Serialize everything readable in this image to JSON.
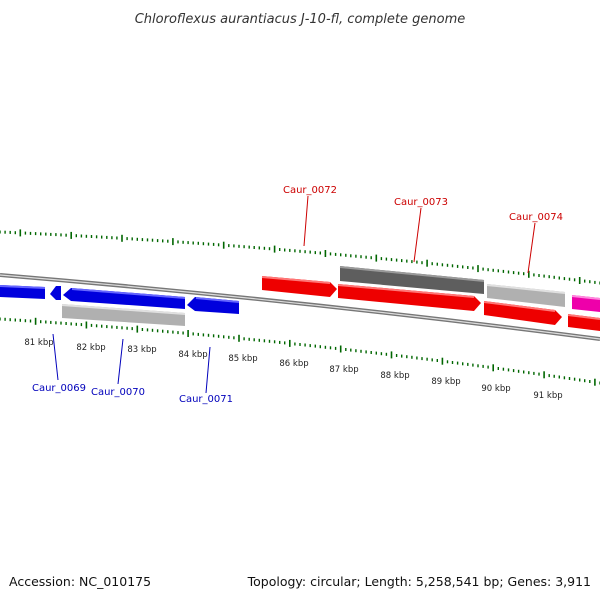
{
  "title": "Chloroflexus aurantiacus J-10-fl, complete genome",
  "footer": {
    "accession": "Accession: NC_010175",
    "summary": "Topology: circular; Length: 5,258,541 bp; Genes: 3,911"
  },
  "colors": {
    "forward": "#ee0000",
    "reverse": "#0000dd",
    "other_forward": "#ee00aa",
    "backbone": "#888888",
    "tick": "#006600",
    "label_forward": "#cc0000",
    "label_reverse": "#0000bb"
  },
  "kbp_labels": [
    "81 kbp",
    "82 kbp",
    "83 kbp",
    "84 kbp",
    "85 kbp",
    "86 kbp",
    "87 kbp",
    "88 kbp",
    "89 kbp",
    "90 kbp",
    "91 kbp"
  ],
  "gene_labels": {
    "g0069": "Caur_0069",
    "g0070": "Caur_0070",
    "g0071": "Caur_0071",
    "g0072": "Caur_0072",
    "g0073": "Caur_0073",
    "g0074": "Caur_0074"
  }
}
